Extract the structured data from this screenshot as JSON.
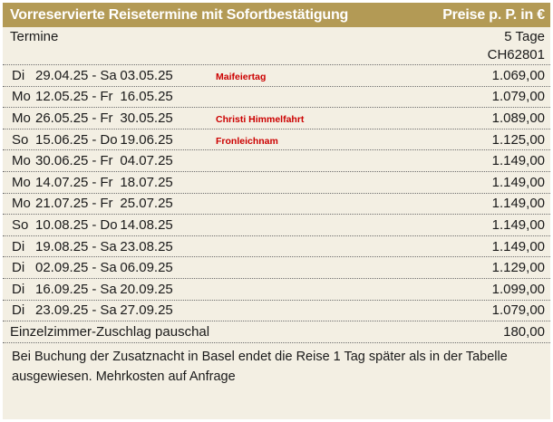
{
  "header": {
    "title": "Vorreservierte Reisetermine mit Sofortbestätigung",
    "price_note": "Preise p. P. in €"
  },
  "subheader": {
    "termine_label": "Termine",
    "duration_label": "5 Tage",
    "code": "CH62801"
  },
  "rows": [
    {
      "d1": "Di",
      "from": "29.04.25",
      "d2": "Sa",
      "to": "03.05.25",
      "note": "Maifeiertag",
      "price": "1.069,00"
    },
    {
      "d1": "Mo",
      "from": "12.05.25",
      "d2": "Fr",
      "to": "16.05.25",
      "note": "",
      "price": "1.079,00"
    },
    {
      "d1": "Mo",
      "from": "26.05.25",
      "d2": "Fr",
      "to": "30.05.25",
      "note": "Christi Himmelfahrt",
      "price": "1.089,00"
    },
    {
      "d1": "So",
      "from": "15.06.25",
      "d2": "Do",
      "to": "19.06.25",
      "note": "Fronleichnam",
      "price": "1.125,00"
    },
    {
      "d1": "Mo",
      "from": "30.06.25",
      "d2": "Fr",
      "to": "04.07.25",
      "note": "",
      "price": "1.149,00"
    },
    {
      "d1": "Mo",
      "from": "14.07.25",
      "d2": "Fr",
      "to": "18.07.25",
      "note": "",
      "price": "1.149,00"
    },
    {
      "d1": "Mo",
      "from": "21.07.25",
      "d2": "Fr",
      "to": "25.07.25",
      "note": "",
      "price": "1.149,00"
    },
    {
      "d1": "So",
      "from": "10.08.25",
      "d2": "Do",
      "to": "14.08.25",
      "note": "",
      "price": "1.149,00"
    },
    {
      "d1": "Di",
      "from": "19.08.25",
      "d2": "Sa",
      "to": "23.08.25",
      "note": "",
      "price": "1.149,00"
    },
    {
      "d1": "Di",
      "from": "02.09.25",
      "d2": "Sa",
      "to": "06.09.25",
      "note": "",
      "price": "1.129,00"
    },
    {
      "d1": "Di",
      "from": "16.09.25",
      "d2": "Sa",
      "to": "20.09.25",
      "note": "",
      "price": "1.099,00"
    },
    {
      "d1": "Di",
      "from": "23.09.25",
      "d2": "Sa",
      "to": "27.09.25",
      "note": "",
      "price": "1.079,00"
    }
  ],
  "surcharge": {
    "label": "Einzelzimmer-Zuschlag pauschal",
    "price": "180,00"
  },
  "footer_text": "Bei Buchung der Zusatznacht in Basel endet die Reise 1 Tag später als in der Tabelle ausgewiesen. Mehrkosten auf Anfrage",
  "colors": {
    "header_bg": "#b39a55",
    "table_bg": "#f3efe3",
    "note_red": "#cc0000"
  }
}
